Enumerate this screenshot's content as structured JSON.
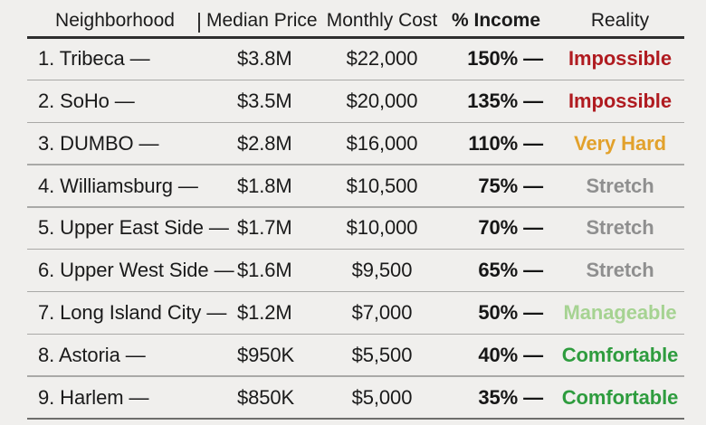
{
  "chart_data": {
    "type": "table",
    "columns": [
      "Neighborhood",
      "Median Price",
      "Monthly Cost",
      "% Income",
      "Reality"
    ],
    "header_separator": "|",
    "rows": [
      {
        "label": "1. Tribeca —",
        "median_price": "$3.8M",
        "monthly_cost": "$22,000",
        "pct_income": "150% —",
        "reality": "Impossible",
        "reality_color": "#b01b20"
      },
      {
        "label": "2. SoHo —",
        "median_price": "$3.5M",
        "monthly_cost": "$20,000",
        "pct_income": "135% —",
        "reality": "Impossible",
        "reality_color": "#b01b20"
      },
      {
        "label": "3. DUMBO —",
        "median_price": "$2.8M",
        "monthly_cost": "$16,000",
        "pct_income": "110% —",
        "reality": "Very Hard",
        "reality_color": "#e2a12b"
      },
      {
        "label": "4. Williamsburg —",
        "median_price": "$1.8M",
        "monthly_cost": "$10,500",
        "pct_income": "75% —",
        "reality": "Stretch",
        "reality_color": "#8f8f8f"
      },
      {
        "label": "5. Upper East Side —",
        "median_price": "$1.7M",
        "monthly_cost": "$10,000",
        "pct_income": "70% —",
        "reality": "Stretch",
        "reality_color": "#8f8f8f"
      },
      {
        "label": "6. Upper West Side —",
        "median_price": "$1.6M",
        "monthly_cost": "$9,500",
        "pct_income": "65% —",
        "reality": "Stretch",
        "reality_color": "#8f8f8f"
      },
      {
        "label": "7. Long Island City —",
        "median_price": "$1.2M",
        "monthly_cost": "$7,000",
        "pct_income": "50% —",
        "reality": "Manageable",
        "reality_color": "#a6d392"
      },
      {
        "label": "8. Astoria —",
        "median_price": "$950K",
        "monthly_cost": "$5,500",
        "pct_income": "40% —",
        "reality": "Comfortable",
        "reality_color": "#2e9c3e"
      },
      {
        "label": "9. Harlem —",
        "median_price": "$850K",
        "monthly_cost": "$5,000",
        "pct_income": "35% —",
        "reality": "Comfortable",
        "reality_color": "#2e9c3e"
      }
    ]
  },
  "colors": {
    "background": "#f0efed",
    "text": "#1a1a1a",
    "header_rule": "#2e2e2e",
    "row_rule": "#a9a9a7",
    "bottom_rule": "#6e6e6c",
    "impossible": "#b01b20",
    "very_hard": "#e2a12b",
    "stretch": "#8f8f8f",
    "manageable": "#a6d392",
    "comfortable": "#2e9c3e"
  }
}
